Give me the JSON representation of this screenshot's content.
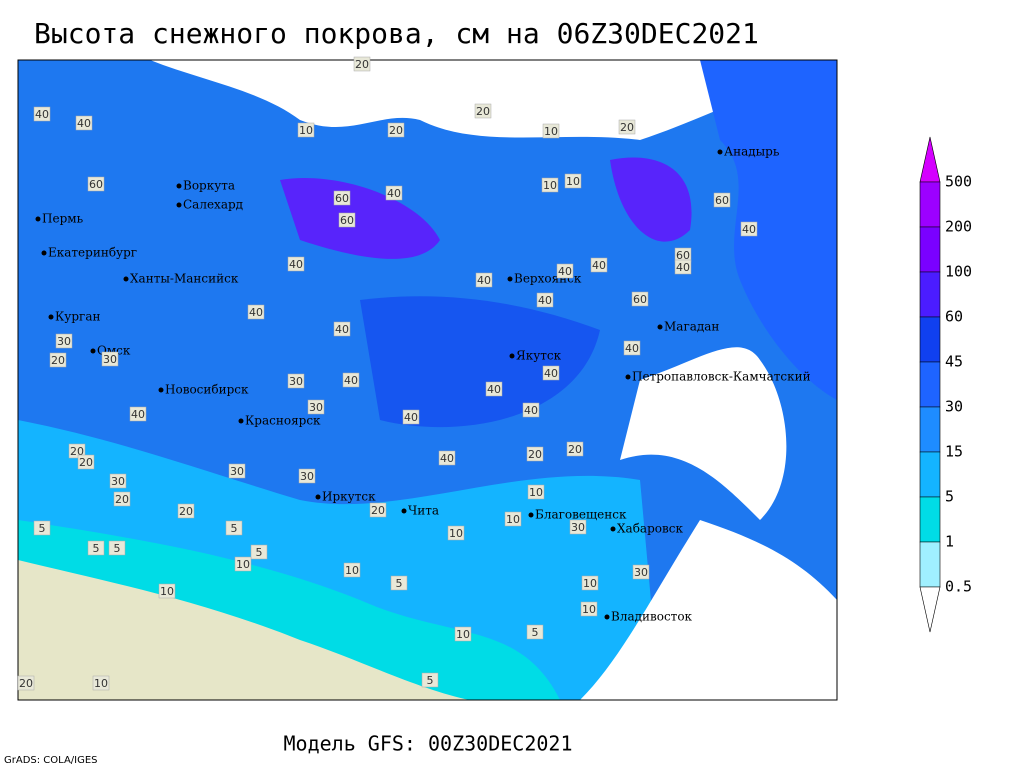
{
  "title": "Высота снежного покрова, см на 06Z30DEC2021",
  "cities": [
    "Анадырь",
    "Воркута",
    "Салехард",
    "Пермь",
    "Екатеринбург",
    "Ханты-Мансийск",
    "Верхоянск",
    "Курган",
    "Магадан",
    "Омск",
    "Якутск",
    "Петропавловск-Камчатский",
    "Новосибирск",
    "Красноярск",
    "Иркутск",
    "Чита",
    "Благовещенск",
    "Хабаровск",
    "Владивосток"
  ],
  "contour_labels": [
    20,
    20,
    10,
    20,
    10,
    40,
    40,
    20,
    10,
    10,
    60,
    60,
    60,
    40,
    60,
    40,
    60,
    40,
    60,
    40,
    40,
    40,
    40,
    40,
    40,
    40,
    40,
    40,
    40,
    40,
    40,
    30,
    30,
    40,
    40,
    40,
    20,
    20,
    30,
    20,
    30,
    20,
    20,
    30,
    20,
    20,
    30,
    30,
    20,
    10,
    10,
    30,
    10,
    5,
    5,
    10,
    10,
    5,
    10,
    5,
    5,
    10,
    10,
    30,
    5,
    5,
    5,
    10,
    10,
    20
  ],
  "colorbar": {
    "labels": [
      500,
      200,
      100,
      60,
      45,
      30,
      15,
      5,
      1,
      0.5
    ]
  },
  "footer": "Модель GFS: 00Z30DEC2021",
  "credit": "GrADS: COLA/IGES"
}
